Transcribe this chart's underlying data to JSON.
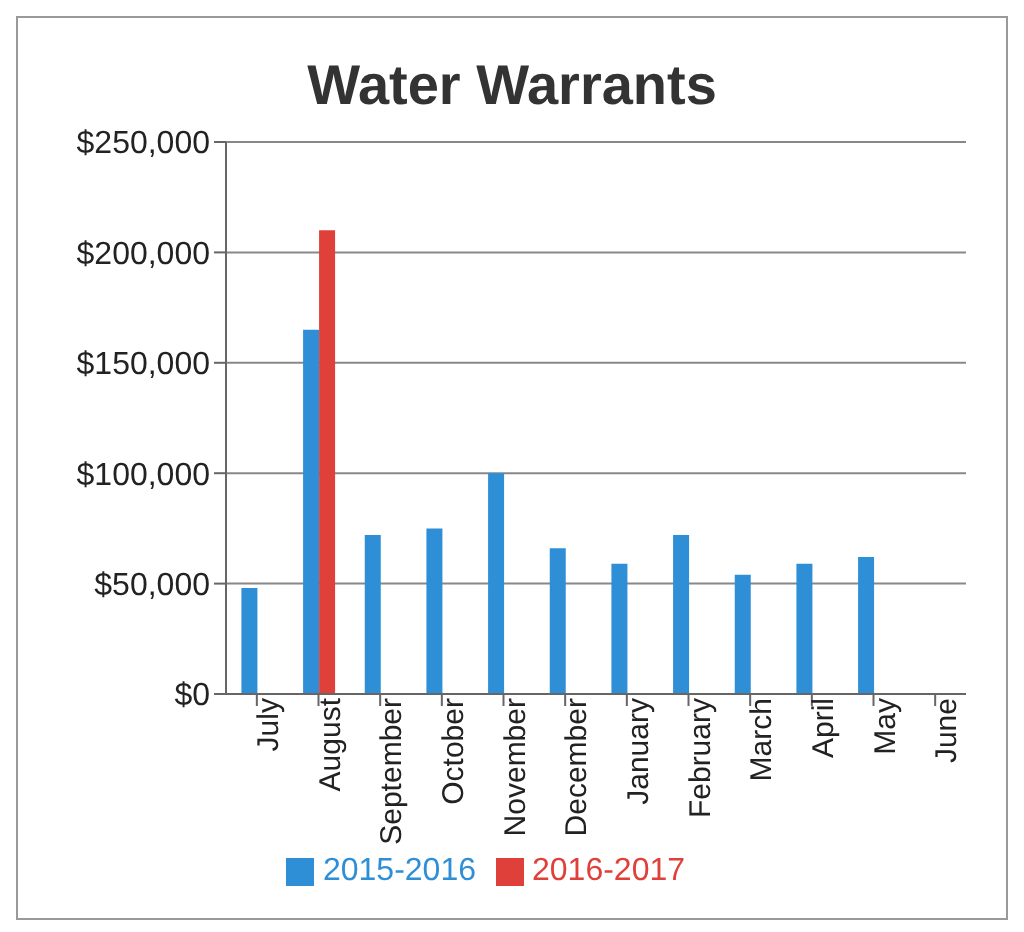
{
  "chart_data": {
    "type": "bar",
    "title": "Water Warrants",
    "categories": [
      "July",
      "August",
      "September",
      "October",
      "November",
      "December",
      "January",
      "February",
      "March",
      "April",
      "May",
      "June"
    ],
    "series": [
      {
        "name": "2015-2016",
        "color": "#2e8fd6",
        "values": [
          48000,
          165000,
          72000,
          75000,
          100000,
          66000,
          59000,
          72000,
          54000,
          59000,
          62000,
          0
        ]
      },
      {
        "name": "2016-2017",
        "color": "#e0403a",
        "values": [
          0,
          210000,
          0,
          0,
          0,
          0,
          0,
          0,
          0,
          0,
          0,
          0
        ]
      }
    ],
    "ylim": [
      0,
      250000
    ],
    "yticks": [
      {
        "value": 0,
        "label": "$0"
      },
      {
        "value": 50000,
        "label": "$50,000"
      },
      {
        "value": 100000,
        "label": "$100,000"
      },
      {
        "value": 150000,
        "label": "$150,000"
      },
      {
        "value": 200000,
        "label": "$200,000"
      },
      {
        "value": 250000,
        "label": "$250,000"
      }
    ],
    "grid": "y",
    "legend": "bottom"
  }
}
